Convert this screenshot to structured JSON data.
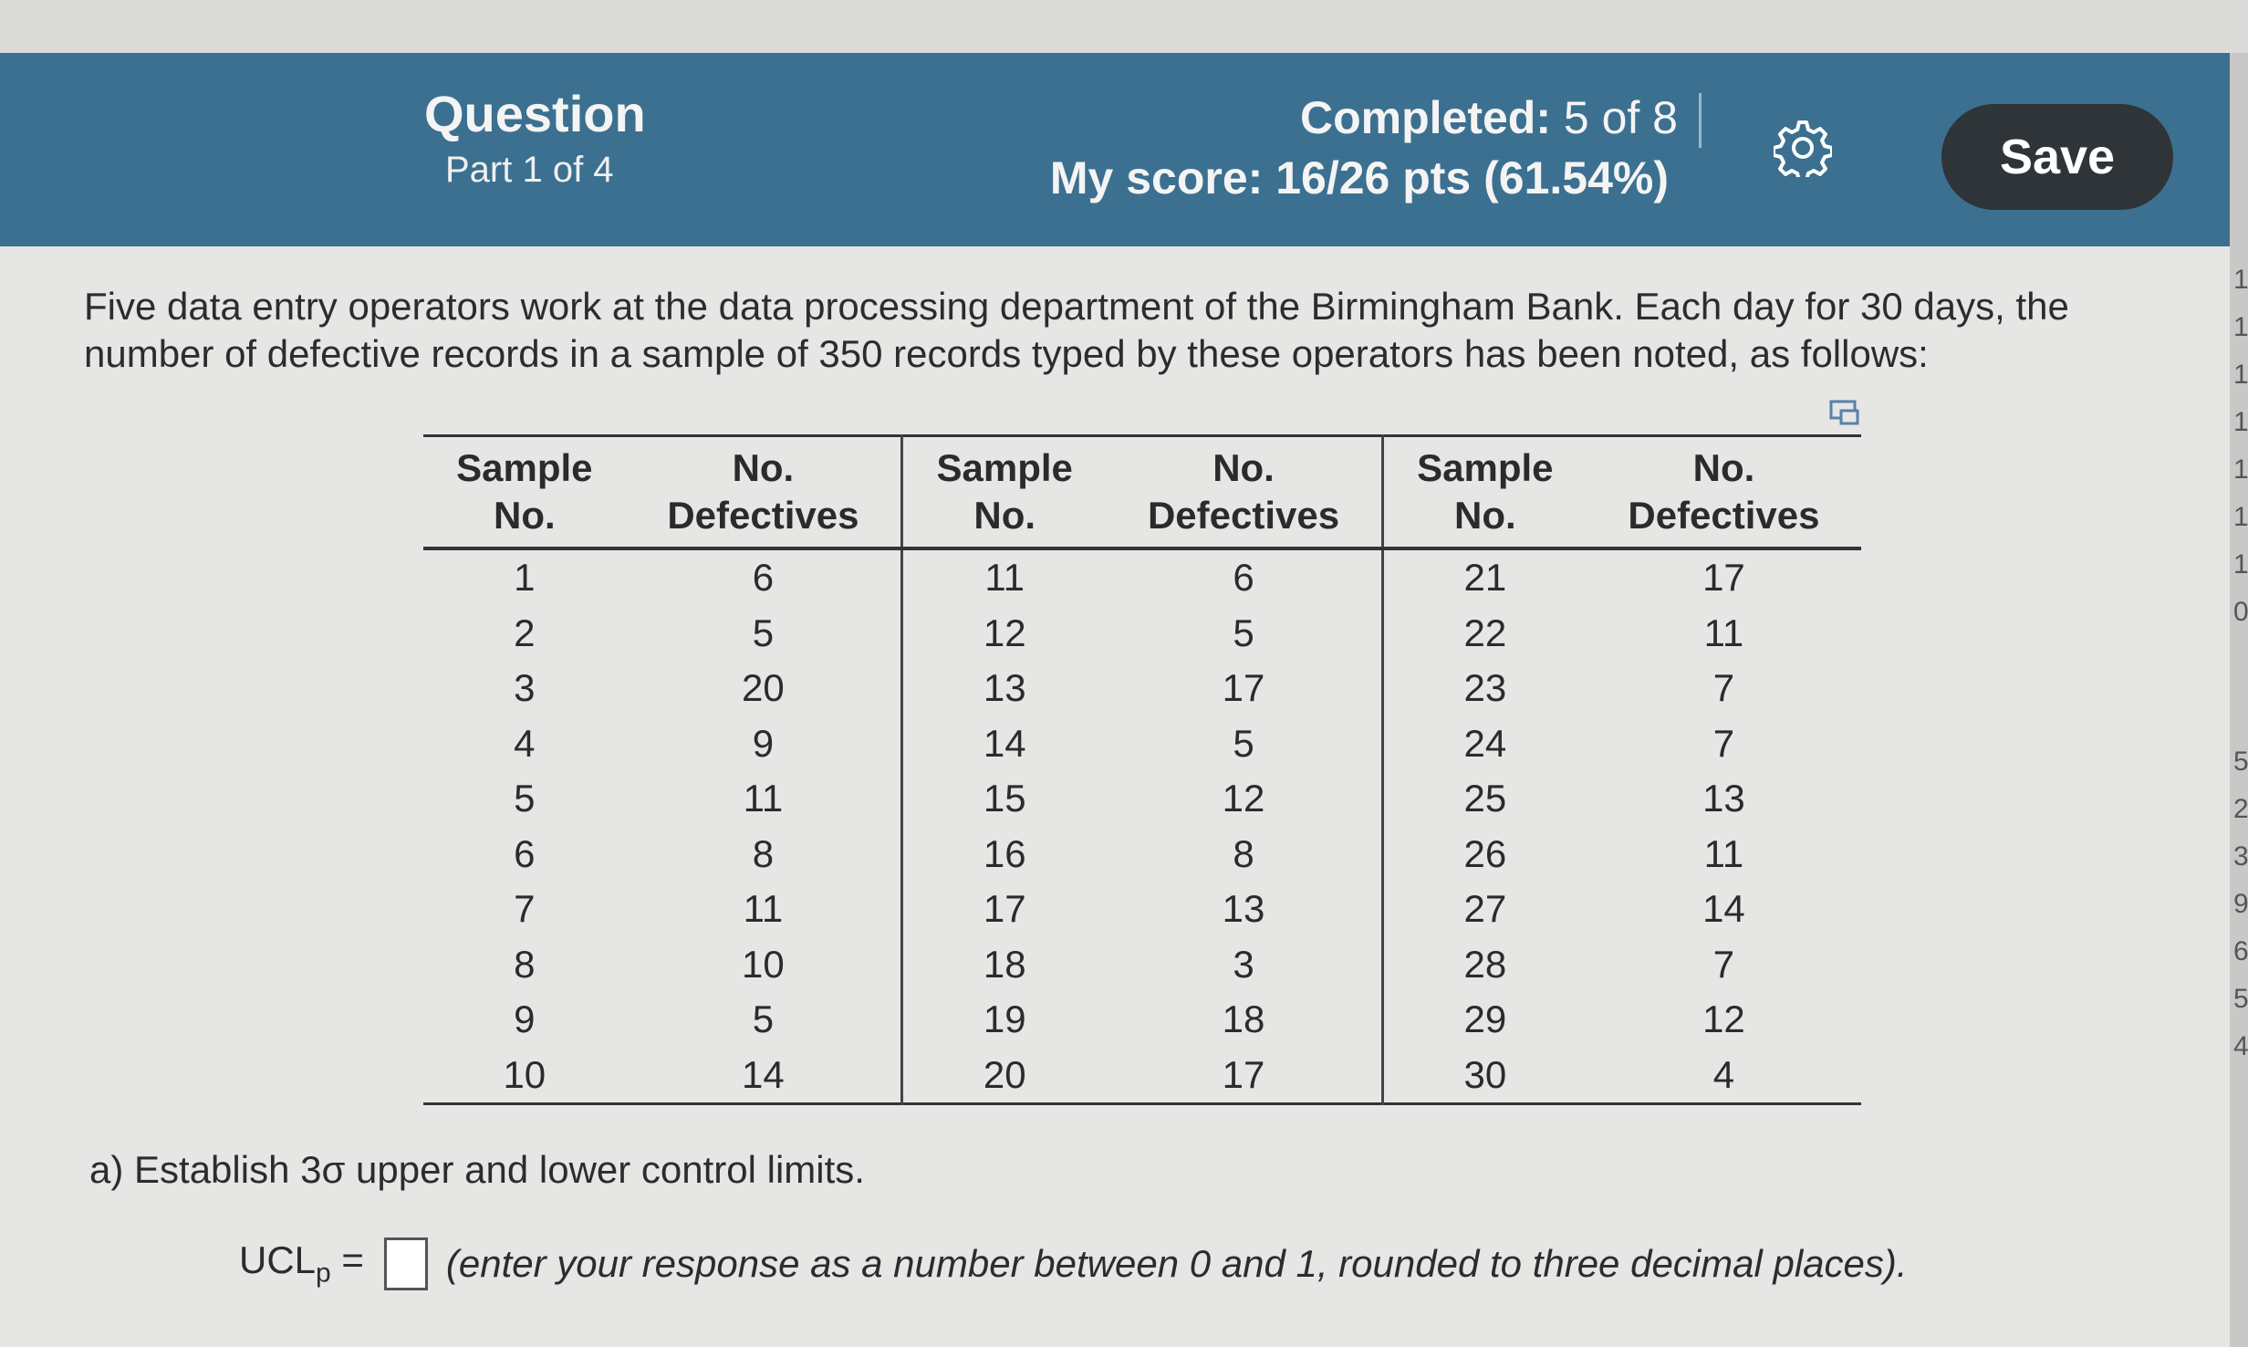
{
  "header": {
    "title": "Question",
    "part": "Part 1 of 4",
    "completed_label": "Completed:",
    "completed_value": "5 of 8",
    "score_label": "My score:",
    "score_value": "16/26 pts (61.54%)",
    "settings_icon": "gear-icon",
    "save_label": "Save"
  },
  "problem": {
    "intro": "Five data entry operators work at the data processing department of the Birmingham Bank. Each day for 30 days, the number of defective records in a sample of 350 records typed by these operators has been noted, as follows:",
    "expand_icon": "expand-icon",
    "table": {
      "headers": [
        [
          "Sample",
          "No."
        ],
        [
          "No.",
          "Defectives"
        ],
        [
          "Sample",
          "No."
        ],
        [
          "No.",
          "Defectives"
        ],
        [
          "Sample",
          "No."
        ],
        [
          "No.",
          "Defectives"
        ]
      ],
      "rows": [
        [
          "1",
          "6",
          "11",
          "6",
          "21",
          "17"
        ],
        [
          "2",
          "5",
          "12",
          "5",
          "22",
          "11"
        ],
        [
          "3",
          "20",
          "13",
          "17",
          "23",
          "7"
        ],
        [
          "4",
          "9",
          "14",
          "5",
          "24",
          "7"
        ],
        [
          "5",
          "11",
          "15",
          "12",
          "25",
          "13"
        ],
        [
          "6",
          "8",
          "16",
          "8",
          "26",
          "11"
        ],
        [
          "7",
          "11",
          "17",
          "13",
          "27",
          "14"
        ],
        [
          "8",
          "10",
          "18",
          "3",
          "28",
          "7"
        ],
        [
          "9",
          "5",
          "19",
          "18",
          "29",
          "12"
        ],
        [
          "10",
          "14",
          "20",
          "17",
          "30",
          "4"
        ]
      ]
    },
    "part_a": "a) Establish 3σ upper and lower control limits.",
    "ucl_label": "UCL",
    "ucl_sub": "p",
    "ucl_equals": "=",
    "ucl_value": "",
    "ucl_hint": "(enter your response as a number between 0 and 1, rounded to three decimal places)."
  },
  "edge_glyphs": [
    "1",
    "1",
    "1",
    "1",
    "1",
    "1",
    "1",
    "0",
    "5",
    "2",
    "3",
    "9",
    "6",
    "5",
    "4"
  ]
}
